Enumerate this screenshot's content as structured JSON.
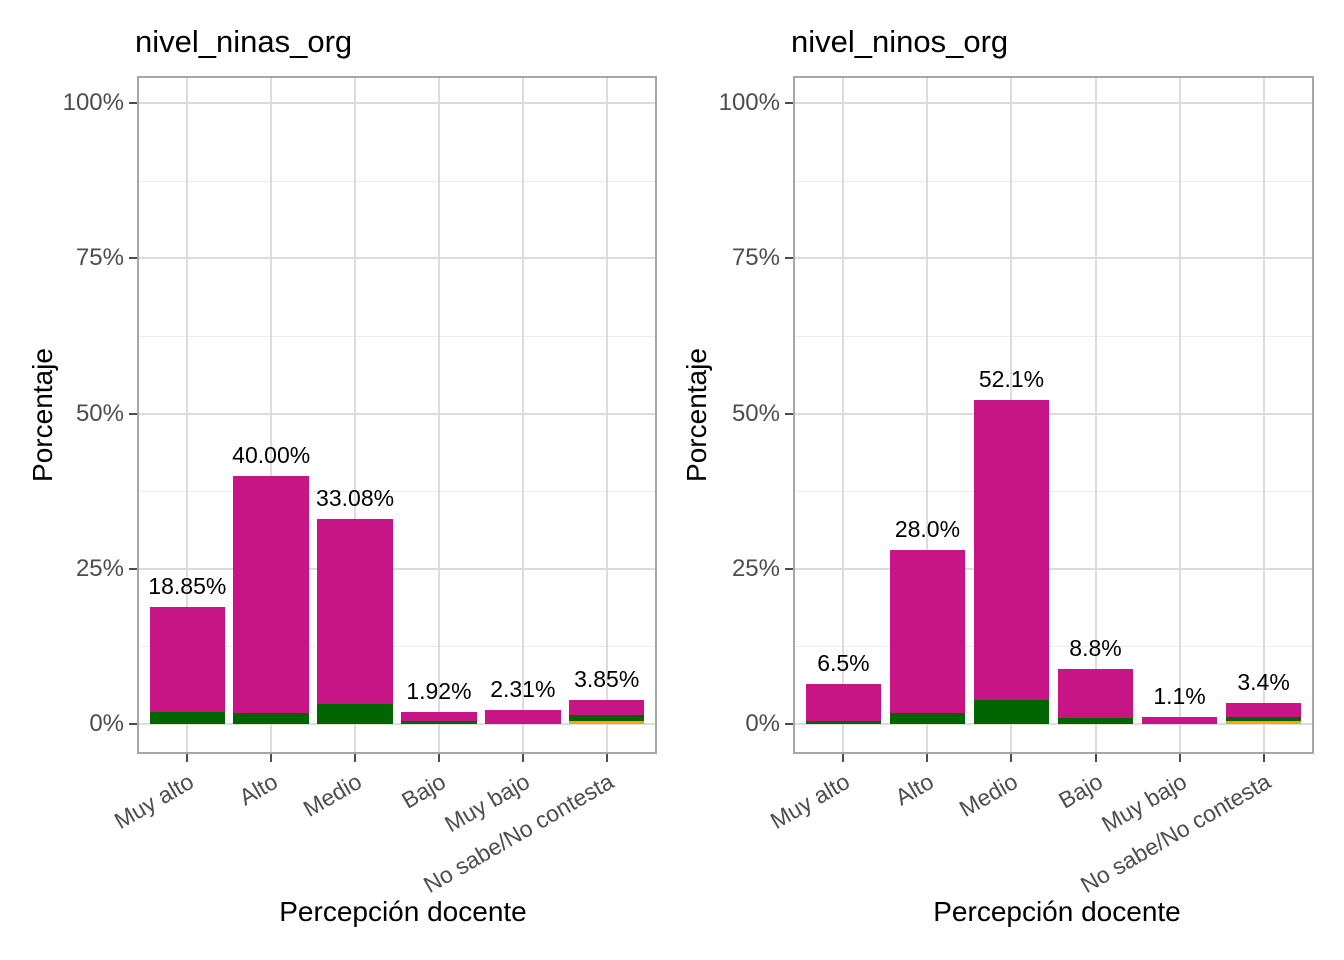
{
  "style": {
    "bar_color_magenta": "#C71585",
    "bar_color_darkgreen": "#006400",
    "bar_color_orange": "#FFA500",
    "grid_major_color": "#DCDCDC",
    "grid_minor_color": "#ECECEC",
    "panel_border_color": "#A6A6A6",
    "axis_text_color": "#4D4D4D",
    "title_color": "#000000"
  },
  "chart_data": [
    {
      "type": "bar",
      "stacked": true,
      "title": "nivel_ninas_org",
      "xlabel": "Percepción docente",
      "ylabel": "Porcentaje",
      "categories": [
        "Muy alto",
        "Alto",
        "Medio",
        "Bajo",
        "Muy bajo",
        "No sabe/No contesta"
      ],
      "bar_labels": [
        "18.85%",
        "40.00%",
        "33.08%",
        "1.92%",
        "2.31%",
        "3.85%"
      ],
      "totals": [
        18.85,
        40.0,
        33.08,
        1.92,
        2.31,
        3.85
      ],
      "series": [
        {
          "name": "bottom-orange-segment",
          "color": "#FFA500",
          "values": [
            0,
            0,
            0,
            0,
            0,
            0.55
          ]
        },
        {
          "name": "middle-darkgreen-segment",
          "color": "#006400",
          "values": [
            1.9,
            1.7,
            3.2,
            0.55,
            0,
            0.95
          ]
        },
        {
          "name": "top-magenta-segment",
          "color": "#C71585",
          "values": [
            16.95,
            38.3,
            29.88,
            1.37,
            2.31,
            2.35
          ]
        }
      ],
      "ylim": [
        0,
        100
      ],
      "yticks": {
        "values": [
          0,
          25,
          50,
          75,
          100
        ],
        "labels": [
          "0%",
          "25%",
          "50%",
          "75%",
          "100%"
        ]
      },
      "yticks_minor": [
        12.5,
        37.5,
        62.5,
        87.5
      ],
      "grid": "major-and-minor",
      "legend": "none"
    },
    {
      "type": "bar",
      "stacked": true,
      "title": "nivel_ninos_org",
      "xlabel": "Percepción docente",
      "ylabel": "Porcentaje",
      "categories": [
        "Muy alto",
        "Alto",
        "Medio",
        "Bajo",
        "Muy bajo",
        "No sabe/No contesta"
      ],
      "bar_labels": [
        "6.5%",
        "28.0%",
        "52.1%",
        "8.8%",
        "1.1%",
        "3.4%"
      ],
      "totals": [
        6.5,
        28.0,
        52.1,
        8.8,
        1.1,
        3.4
      ],
      "series": [
        {
          "name": "bottom-orange-segment",
          "color": "#FFA500",
          "values": [
            0,
            0,
            0,
            0,
            0,
            0.55
          ]
        },
        {
          "name": "middle-darkgreen-segment",
          "color": "#006400",
          "values": [
            0.55,
            1.7,
            3.85,
            0.9,
            0,
            0.55
          ]
        },
        {
          "name": "top-magenta-segment",
          "color": "#C71585",
          "values": [
            5.95,
            26.3,
            48.25,
            7.9,
            1.1,
            2.3
          ]
        }
      ],
      "ylim": [
        0,
        100
      ],
      "yticks": {
        "values": [
          0,
          25,
          50,
          75,
          100
        ],
        "labels": [
          "0%",
          "25%",
          "50%",
          "75%",
          "100%"
        ]
      },
      "yticks_minor": [
        12.5,
        37.5,
        62.5,
        87.5
      ],
      "grid": "major-and-minor",
      "legend": "none"
    }
  ]
}
